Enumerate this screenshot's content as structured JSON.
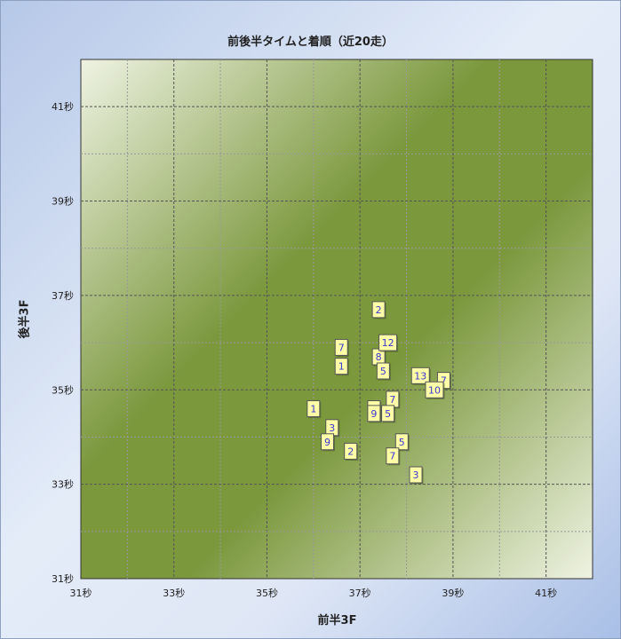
{
  "chart_data": {
    "type": "scatter",
    "title": "前後半タイムと着順（近20走）",
    "xlabel": "前半3F",
    "ylabel": "後半3F",
    "xlim": [
      31,
      42
    ],
    "ylim": [
      31,
      42
    ],
    "x_ticks": [
      {
        "v": 31,
        "label": "31秒"
      },
      {
        "v": 33,
        "label": "33秒"
      },
      {
        "v": 35,
        "label": "35秒"
      },
      {
        "v": 37,
        "label": "37秒"
      },
      {
        "v": 39,
        "label": "39秒"
      },
      {
        "v": 41,
        "label": "41秒"
      }
    ],
    "y_ticks": [
      {
        "v": 31,
        "label": "31秒"
      },
      {
        "v": 33,
        "label": "33秒"
      },
      {
        "v": 35,
        "label": "35秒"
      },
      {
        "v": 37,
        "label": "37秒"
      },
      {
        "v": 39,
        "label": "39秒"
      },
      {
        "v": 41,
        "label": "41秒"
      }
    ],
    "grid": true,
    "background": {
      "dark": "#7b983d",
      "light": "#eff3e3"
    },
    "marker_fill": "#ffffa8",
    "marker_text": "#3a3ad0",
    "points": [
      {
        "x": 37.4,
        "y": 36.7,
        "label": "2"
      },
      {
        "x": 36.6,
        "y": 35.9,
        "label": "7"
      },
      {
        "x": 37.4,
        "y": 35.7,
        "label": "8"
      },
      {
        "x": 37.6,
        "y": 36.0,
        "label": "12"
      },
      {
        "x": 36.6,
        "y": 35.5,
        "label": "1"
      },
      {
        "x": 37.5,
        "y": 35.4,
        "label": "5"
      },
      {
        "x": 38.8,
        "y": 35.2,
        "label": "7"
      },
      {
        "x": 38.3,
        "y": 35.3,
        "label": "13"
      },
      {
        "x": 38.6,
        "y": 35.0,
        "label": "10"
      },
      {
        "x": 37.7,
        "y": 34.8,
        "label": "7"
      },
      {
        "x": 36.0,
        "y": 34.6,
        "label": "1"
      },
      {
        "x": 37.3,
        "y": 34.6,
        "label": ""
      },
      {
        "x": 37.3,
        "y": 34.5,
        "label": "9"
      },
      {
        "x": 37.6,
        "y": 34.5,
        "label": "5"
      },
      {
        "x": 36.4,
        "y": 34.2,
        "label": "3"
      },
      {
        "x": 36.3,
        "y": 33.9,
        "label": "9"
      },
      {
        "x": 36.8,
        "y": 33.7,
        "label": "2"
      },
      {
        "x": 37.9,
        "y": 33.9,
        "label": "5"
      },
      {
        "x": 37.7,
        "y": 33.6,
        "label": "7"
      },
      {
        "x": 38.2,
        "y": 33.2,
        "label": "3"
      }
    ]
  }
}
